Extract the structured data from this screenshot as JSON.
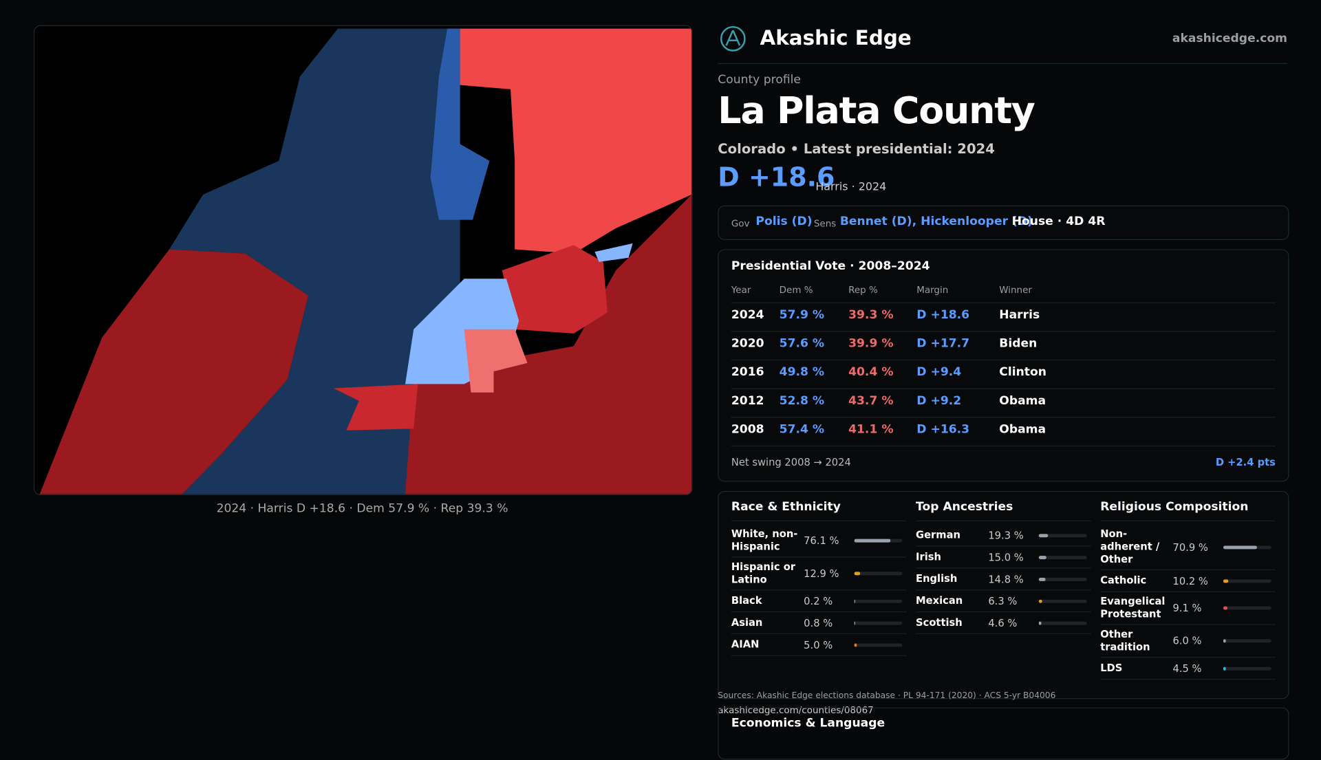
{
  "header": {
    "brand": "Akashic Edge",
    "domain": "akashicedge.com"
  },
  "profile": {
    "label": "County profile",
    "title": "La Plata County",
    "subtitle": "Colorado • Latest presidential: 2024",
    "margin": "D +18.6",
    "margin_note": "Harris · 2024"
  },
  "map": {
    "caption": "2024 · Harris D +18.6 · Dem 57.9 % · Rep 39.3 %"
  },
  "officials": {
    "gov_label": "Gov",
    "gov": "Polis (D)",
    "sens_label": "Sens",
    "sens": "Bennet (D), Hickenlooper (D)",
    "house": "House · 4D 4R"
  },
  "table": {
    "title": "Presidential Vote · 2008–2024",
    "columns": [
      "Year",
      "Dem %",
      "Rep %",
      "Margin",
      "Winner"
    ],
    "rows": [
      [
        "2024",
        "57.9 %",
        "39.3 %",
        "D +18.6",
        "Harris"
      ],
      [
        "2020",
        "57.6 %",
        "39.9 %",
        "D +17.7",
        "Biden"
      ],
      [
        "2016",
        "49.8 %",
        "40.4 %",
        "D +9.4",
        "Clinton"
      ],
      [
        "2012",
        "52.8 %",
        "43.7 %",
        "D +9.2",
        "Obama"
      ],
      [
        "2008",
        "57.4 %",
        "41.1 %",
        "D +16.3",
        "Obama"
      ]
    ],
    "swing_label": "Net swing 2008 → 2024",
    "swing": "D +2.4 pts"
  },
  "demographics": [
    {
      "title": "Race & Ethnicity",
      "rows": [
        {
          "name": "White, non-Hispanic",
          "value": 76.1,
          "label": "76.1 %",
          "color": "#9aa3ad"
        },
        {
          "name": "Hispanic or Latino",
          "value": 12.9,
          "label": "12.9 %",
          "color": "#e0a020"
        },
        {
          "name": "Black",
          "value": 0.2,
          "label": "0.2 %",
          "color": "#9aa3ad"
        },
        {
          "name": "Asian",
          "value": 0.8,
          "label": "0.8 %",
          "color": "#9aa3ad"
        },
        {
          "name": "AIAN",
          "value": 5.0,
          "label": "5.0 %",
          "color": "#e07b20"
        }
      ]
    },
    {
      "title": "Top Ancestries",
      "rows": [
        {
          "name": "German",
          "value": 19.3,
          "label": "19.3 %",
          "color": "#9aa3ad"
        },
        {
          "name": "Irish",
          "value": 15.0,
          "label": "15.0 %",
          "color": "#9aa3ad"
        },
        {
          "name": "English",
          "value": 14.8,
          "label": "14.8 %",
          "color": "#9aa3ad"
        },
        {
          "name": "Mexican",
          "value": 6.3,
          "label": "6.3 %",
          "color": "#e0a020"
        },
        {
          "name": "Scottish",
          "value": 4.6,
          "label": "4.6 %",
          "color": "#9aa3ad"
        }
      ]
    },
    {
      "title": "Religious Composition",
      "rows": [
        {
          "name": "Non-adherent / Other",
          "value": 70.9,
          "label": "70.9 %",
          "color": "#9aa3ad"
        },
        {
          "name": "Catholic",
          "value": 10.2,
          "label": "10.2 %",
          "color": "#e0a020"
        },
        {
          "name": "Evangelical Protestant",
          "value": 9.1,
          "label": "9.1 %",
          "color": "#e05050"
        },
        {
          "name": "Other tradition",
          "value": 6.0,
          "label": "6.0 %",
          "color": "#9aa3ad"
        },
        {
          "name": "LDS",
          "value": 4.5,
          "label": "4.5 %",
          "color": "#30b8d8"
        }
      ]
    }
  ],
  "footer": {
    "sources": "Sources: Akashic Edge elections database · PL 94-171 (2020) · ACS 5-yr B04006",
    "url": "akashicedge.com/counties/08067",
    "next_section": "Economics & Language"
  }
}
